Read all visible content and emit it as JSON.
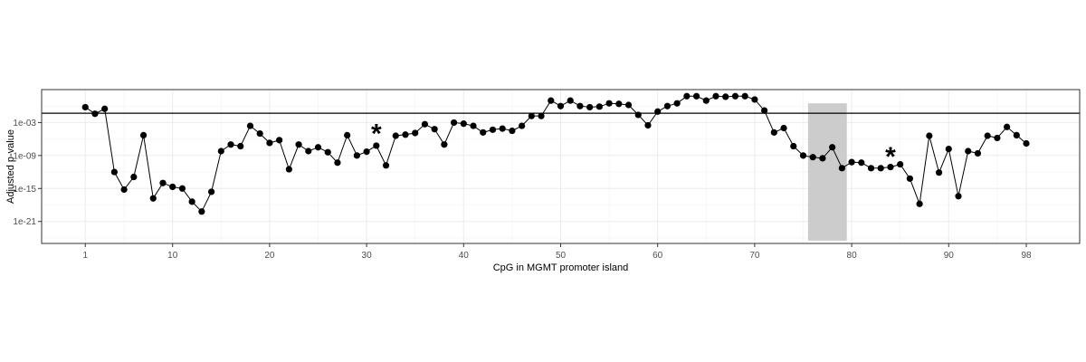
{
  "chart_data": {
    "type": "line",
    "title": "",
    "xlabel": "CpG in MGMT promoter island",
    "ylabel": "Adjusted p-value",
    "y_scale": "log10",
    "xlim": [
      -3.5,
      103.5
    ],
    "ylim_exp": [
      -25,
      3
    ],
    "x_ticks": [
      1,
      10,
      20,
      30,
      40,
      50,
      60,
      70,
      80,
      90,
      98
    ],
    "x_tick_labels": [
      "1",
      "10",
      "20",
      "30",
      "40",
      "50",
      "60",
      "70",
      "80",
      "90",
      "98"
    ],
    "x_minor": [
      5,
      15,
      25,
      35,
      45,
      55,
      65,
      75,
      85,
      95
    ],
    "y_ticks_exp": [
      -3,
      -9,
      -15,
      -21
    ],
    "y_tick_labels": [
      "1e-03",
      "1e-09",
      "1e-15",
      "1e-21"
    ],
    "y_minor_exp": [
      0,
      -6,
      -12,
      -18,
      -24
    ],
    "reference_line_exp": -1.3,
    "shaded_region": {
      "x_start": 75.5,
      "x_end": 79.5,
      "y_start_exp": 0.5,
      "y_end_exp": -24.5
    },
    "annotations": [
      {
        "text": "*",
        "x": 31,
        "y_exp": -4.5
      },
      {
        "text": "*",
        "x": 84,
        "y_exp": -8.7
      }
    ],
    "grid": true,
    "x": [
      1,
      2,
      3,
      4,
      5,
      6,
      7,
      8,
      9,
      10,
      11,
      12,
      13,
      14,
      15,
      16,
      17,
      18,
      19,
      20,
      21,
      22,
      23,
      24,
      25,
      26,
      27,
      28,
      29,
      30,
      31,
      32,
      33,
      34,
      35,
      36,
      37,
      38,
      39,
      40,
      41,
      42,
      43,
      44,
      45,
      46,
      47,
      48,
      49,
      50,
      51,
      52,
      53,
      54,
      55,
      56,
      57,
      58,
      59,
      60,
      61,
      62,
      63,
      64,
      65,
      66,
      67,
      68,
      69,
      70,
      71,
      72,
      73,
      74,
      75,
      76,
      77,
      78,
      79,
      80,
      81,
      82,
      83,
      84,
      85,
      86,
      87,
      88,
      89,
      90,
      91,
      92,
      93,
      94,
      95,
      96,
      97,
      98
    ],
    "y_exp": [
      -0.2,
      -1.4,
      -0.5,
      -12.0,
      -15.2,
      -12.9,
      -5.3,
      -16.8,
      -14.0,
      -14.7,
      -15.0,
      -17.4,
      -19.2,
      -15.6,
      -8.2,
      -7.0,
      -7.3,
      -3.6,
      -5.0,
      -6.7,
      -6.2,
      -11.5,
      -7.0,
      -8.2,
      -7.5,
      -8.4,
      -10.3,
      -5.3,
      -9.0,
      -8.3,
      -7.2,
      -10.8,
      -5.4,
      -5.2,
      -4.9,
      -3.3,
      -4.2,
      -7.0,
      -3.0,
      -3.2,
      -3.6,
      -4.8,
      -4.3,
      -4.1,
      -4.5,
      -3.6,
      -1.8,
      -1.8,
      1.0,
      0.0,
      1.0,
      0.0,
      -0.2,
      -0.1,
      0.5,
      0.4,
      0.2,
      -1.6,
      -3.5,
      -1.0,
      0.0,
      0.5,
      1.8,
      1.8,
      1.0,
      1.8,
      1.7,
      1.8,
      1.8,
      1.2,
      -0.8,
      -4.8,
      -4.0,
      -7.3,
      -9.0,
      -9.3,
      -9.5,
      -7.5,
      -11.3,
      -10.2,
      -10.3,
      -11.3,
      -11.3,
      -11.1,
      -10.6,
      -13.2,
      -17.8,
      -5.4,
      -12.1,
      -7.8,
      -16.4,
      -8.2,
      -8.6,
      -5.4,
      -5.8,
      -3.8,
      -5.3,
      -6.8
    ]
  }
}
